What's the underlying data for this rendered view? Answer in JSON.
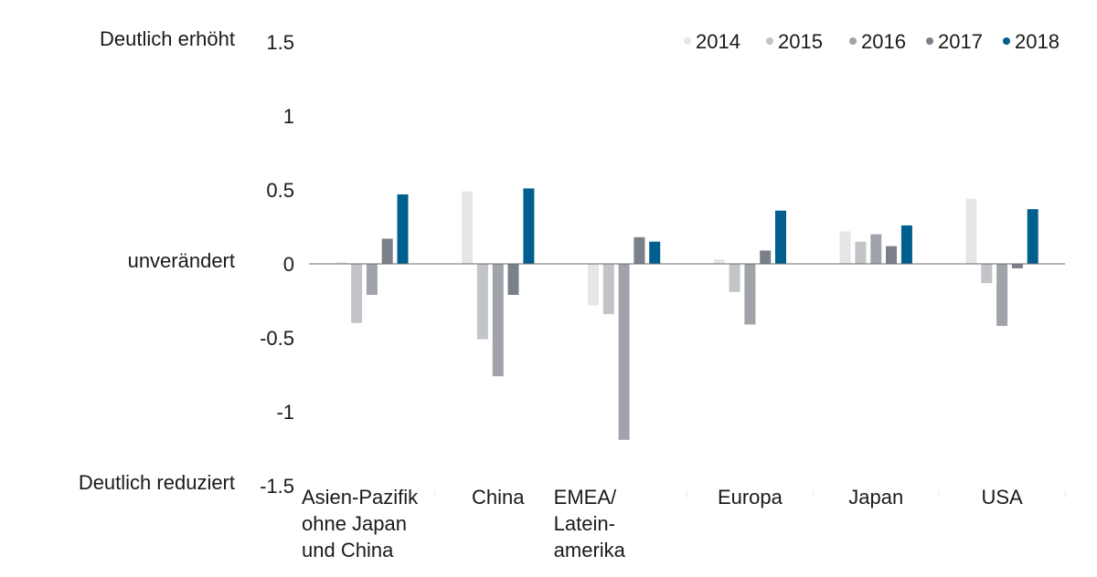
{
  "chart_data": {
    "type": "bar",
    "title": "",
    "xlabel": "",
    "ylabel": "",
    "ylim": [
      -1.5,
      1.5
    ],
    "yticks": [
      "1.5",
      "1",
      "0.5",
      "0",
      "-0.5",
      "-1",
      "-1.5"
    ],
    "ytick_values": [
      1.5,
      1,
      0.5,
      0,
      -0.5,
      -1,
      -1.5
    ],
    "level_labels": [
      {
        "text": "Deutlich erhöht",
        "value": 1.5
      },
      {
        "text": "unverändert",
        "value": 0
      },
      {
        "text": "Deutlich reduziert",
        "value": -1.5
      }
    ],
    "categories": [
      [
        "Asien-Pazifik",
        "ohne Japan",
        "und China"
      ],
      [
        "China"
      ],
      [
        "EMEA/",
        "Latein-",
        "amerika"
      ],
      [
        "Europa"
      ],
      [
        "Japan"
      ],
      [
        "USA"
      ]
    ],
    "legend_position": "top-right",
    "grid": false,
    "series": [
      {
        "name": "2014",
        "color": "#e6e6e6",
        "values": [
          0.01,
          0.49,
          -0.28,
          0.03,
          0.22,
          0.44
        ]
      },
      {
        "name": "2015",
        "color": "#c2c4c8",
        "values": [
          -0.4,
          -0.51,
          -0.34,
          -0.19,
          0.15,
          -0.13
        ]
      },
      {
        "name": "2016",
        "color": "#a0a4aa",
        "values": [
          -0.21,
          -0.76,
          -1.19,
          -0.41,
          0.2,
          -0.42
        ]
      },
      {
        "name": "2017",
        "color": "#7a7f89",
        "values": [
          0.17,
          -0.21,
          0.18,
          0.09,
          0.12,
          -0.03
        ]
      },
      {
        "name": "2018",
        "color": "#005f8f",
        "values": [
          0.47,
          0.51,
          0.15,
          0.36,
          0.26,
          0.37
        ]
      }
    ]
  }
}
